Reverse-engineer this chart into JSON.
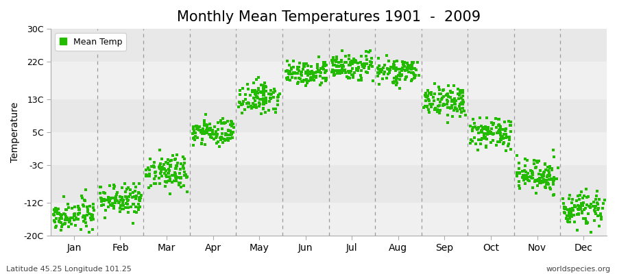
{
  "title": "Monthly Mean Temperatures 1901  -  2009",
  "ylabel": "Temperature",
  "bottom_left_text": "Latitude 45.25 Longitude 101.25",
  "bottom_right_text": "worldspecies.org",
  "legend_label": "Mean Temp",
  "dot_color": "#22bb00",
  "dot_size": 7,
  "dot_marker": "s",
  "ylim": [
    -20,
    30
  ],
  "ytick_values": [
    -20,
    -12,
    -3,
    5,
    13,
    22,
    30
  ],
  "ytick_labels": [
    "-20C",
    "-12C",
    "-3C",
    "5C",
    "13C",
    "22C",
    "30C"
  ],
  "month_names": [
    "Jan",
    "Feb",
    "Mar",
    "Apr",
    "May",
    "Jun",
    "Jul",
    "Aug",
    "Sep",
    "Oct",
    "Nov",
    "Dec"
  ],
  "figure_bg": "#ffffff",
  "plot_bg": "#ffffff",
  "band_colors": [
    "#f0f0f0",
    "#e8e8e8"
  ],
  "title_fontsize": 15,
  "monthly_mean_temps": [
    -15.0,
    -11.5,
    -4.5,
    5.0,
    13.5,
    19.0,
    21.0,
    19.5,
    12.5,
    5.0,
    -5.5,
    -13.5
  ],
  "monthly_spread": [
    2.5,
    2.5,
    2.8,
    2.5,
    2.5,
    2.0,
    2.5,
    2.0,
    2.5,
    2.5,
    3.0,
    2.8
  ],
  "n_years": 109
}
